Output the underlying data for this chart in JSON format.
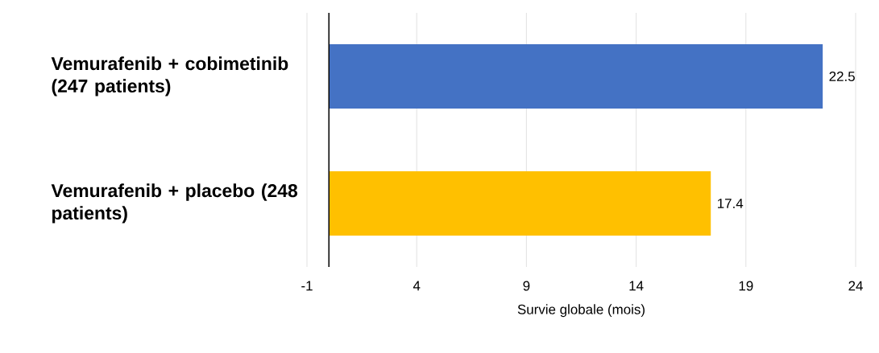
{
  "chart_data": {
    "type": "bar",
    "orientation": "horizontal",
    "categories": [
      "Vemurafenib + cobimetinib (247 patients)",
      "Vemurafenib + placebo (248 patients)"
    ],
    "values": [
      22.5,
      17.4
    ],
    "colors": [
      "#4472c4",
      "#ffc000"
    ],
    "xlabel": "Survie globale (mois)",
    "xlim": [
      -1,
      24
    ],
    "xticks": [
      -1,
      4,
      9,
      14,
      19,
      24
    ],
    "grid": "x",
    "data_labels": true
  }
}
